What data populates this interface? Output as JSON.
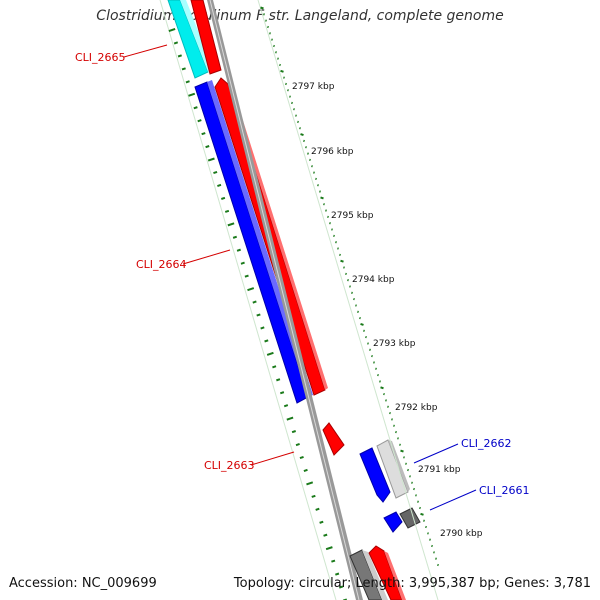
{
  "title": "Clostridium botulinum F str. Langeland, complete genome",
  "footer": {
    "accession": "Accession: NC_009699",
    "summary": "Topology: circular; Length: 3,995,387 bp; Genes: 3,781"
  },
  "ticks": [
    {
      "label": "2797 kbp"
    },
    {
      "label": "2796 kbp"
    },
    {
      "label": "2795 kbp"
    },
    {
      "label": "2794 kbp"
    },
    {
      "label": "2793 kbp"
    },
    {
      "label": "2792 kbp"
    },
    {
      "label": "2791 kbp"
    },
    {
      "label": "2790 kbp"
    }
  ],
  "genes": [
    {
      "name": "CLI_2665",
      "color": "#d40000"
    },
    {
      "name": "CLI_2664",
      "color": "#d40000"
    },
    {
      "name": "CLI_2663",
      "color": "#d40000"
    },
    {
      "name": "CLI_2662",
      "color": "#0000c8"
    },
    {
      "name": "CLI_2661",
      "color": "#0000c8"
    }
  ],
  "colors": {
    "forward_cds": "#ff0000",
    "reverse_cds": "#0000ff",
    "rna": "#00e5e5",
    "gray_feature": "#c8c8c8",
    "backbone": "#888888",
    "tick": "#1a7a1a"
  }
}
